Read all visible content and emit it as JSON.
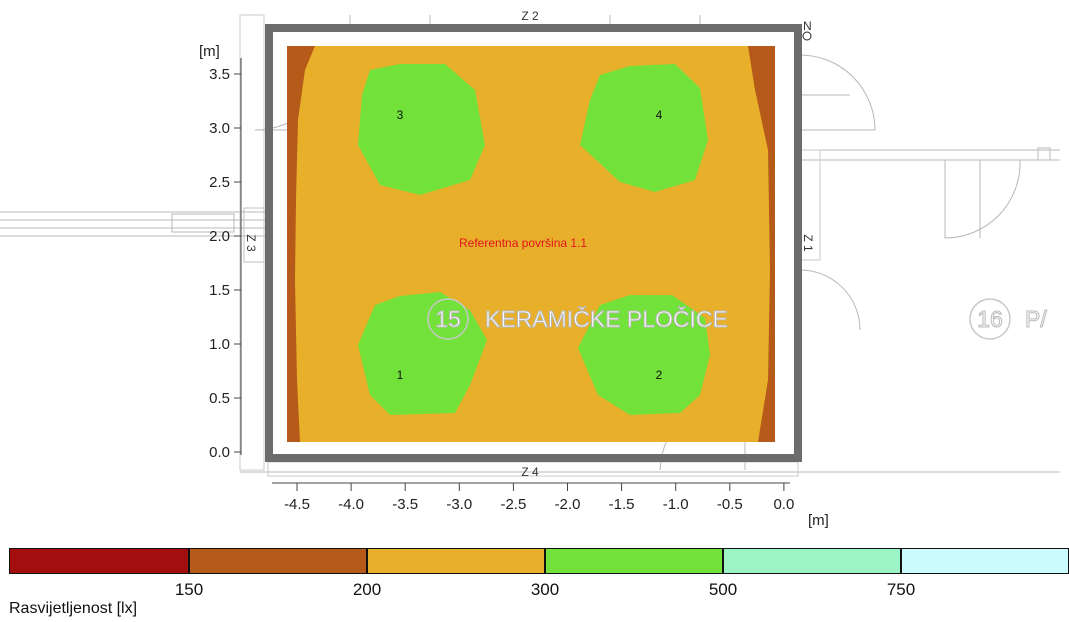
{
  "plan": {
    "y_unit": "[m]",
    "x_unit": "[m]",
    "y_ticks": [
      "3.5",
      "3.0",
      "2.5",
      "2.0",
      "1.5",
      "1.0",
      "0.5",
      "0.0"
    ],
    "x_ticks": [
      "-4.5",
      "-4.0",
      "-3.5",
      "-3.0",
      "-2.5",
      "-2.0",
      "-1.5",
      "-1.0",
      "-0.5",
      "0.0"
    ],
    "reference_label": "Referentna površina 1.1",
    "room_label": "KERAMIČKE PLOČICE",
    "room_number": "15",
    "next_room_number": "16",
    "next_room_label": "P/",
    "north_label": "N",
    "wall_labels": {
      "top": "Z 2",
      "left": "Z 3",
      "right": "Z 1",
      "bottom": "Z 4"
    },
    "luminaires": [
      "3",
      "4",
      "1",
      "2"
    ]
  },
  "legend": {
    "title": "Rasvijetljenost [lx]",
    "values": [
      "150",
      "200",
      "300",
      "500",
      "750"
    ],
    "colors": [
      "#a30f0f",
      "#b55a18",
      "#e8b02a",
      "#72e13a",
      "#9cf3c6",
      "#ccfbfd"
    ]
  }
}
